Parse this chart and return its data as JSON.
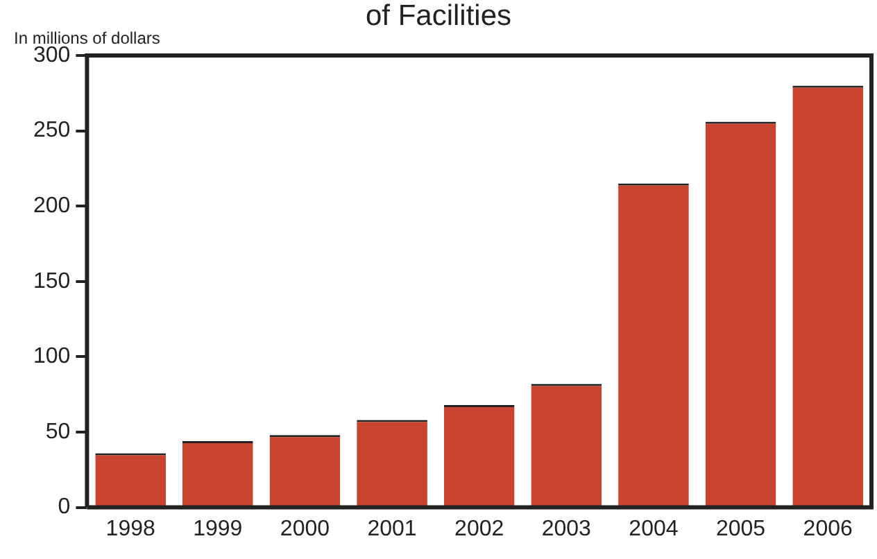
{
  "chart_data": {
    "type": "bar",
    "title": "of Facilities",
    "ylabel": "In millions of dollars",
    "categories": [
      "1998",
      "1999",
      "2000",
      "2001",
      "2002",
      "2003",
      "2004",
      "2005",
      "2006"
    ],
    "values": [
      36,
      44,
      48,
      58,
      68,
      82,
      215,
      256,
      280
    ],
    "color": "#c8442f",
    "ylim": [
      0,
      300
    ],
    "yticks": [
      0,
      50,
      100,
      150,
      200,
      250,
      300
    ],
    "grid": false,
    "legend": false
  }
}
